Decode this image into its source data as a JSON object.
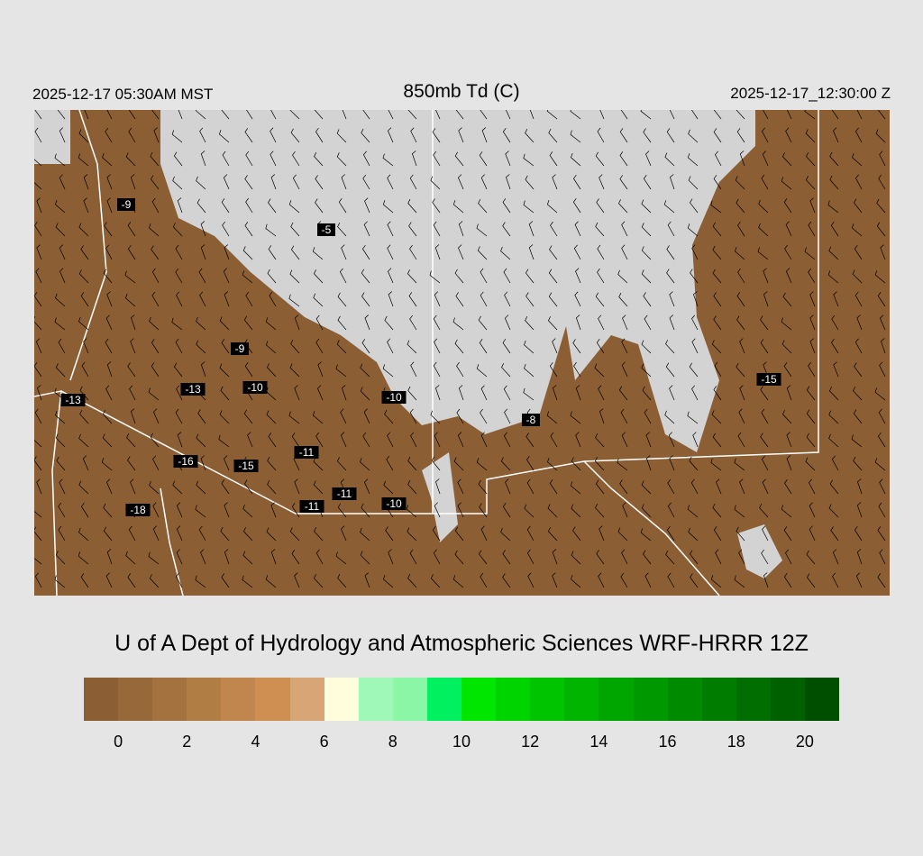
{
  "header": {
    "valid_local": "2025-12-17 05:30AM MST",
    "title": "850mb Td (C)",
    "valid_utc": "2025-12-17_12:30:00 Z"
  },
  "map": {
    "land_color": "#8b5e34",
    "dry_fill": "#d3d3d3",
    "boundary_color": "#ffffff",
    "station_values": [
      "-9",
      "-5",
      "-9",
      "-13",
      "-10",
      "-13",
      "-10",
      "-8",
      "-15",
      "-16",
      "-15",
      "-11",
      "-11",
      "-11",
      "-10",
      "-18"
    ]
  },
  "credit": "U of A Dept of Hydrology and Atmospheric Sciences WRF-HRRR 12Z",
  "colorbar": {
    "colors": [
      "#8b5e34",
      "#96683a",
      "#a3723f",
      "#b07d45",
      "#c0864d",
      "#cf8e52",
      "#d8a676",
      "#fffddc",
      "#a0f8b8",
      "#8af6a6",
      "#00f060",
      "#00e600",
      "#00d400",
      "#00c400",
      "#00b400",
      "#00a600",
      "#009800",
      "#008a00",
      "#007c00",
      "#006e00",
      "#006000",
      "#004e00"
    ],
    "tick_labels": [
      "0",
      "2",
      "4",
      "6",
      "8",
      "10",
      "12",
      "14",
      "16",
      "18",
      "20"
    ]
  }
}
